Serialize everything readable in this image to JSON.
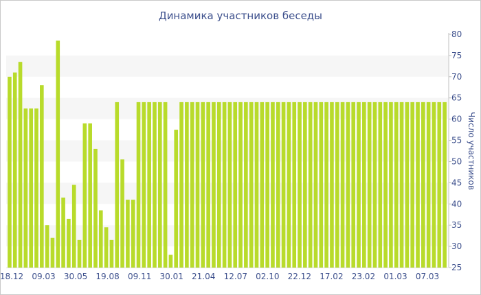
{
  "chart_data": {
    "type": "bar",
    "title": "Динамика участников беседы",
    "xlabel": "",
    "ylabel": "Число участников",
    "y_axis_side": "right",
    "ylim": [
      25,
      80
    ],
    "yticks": [
      25,
      30,
      35,
      40,
      45,
      50,
      55,
      60,
      65,
      70,
      75,
      80
    ],
    "grid": "horizontal bands",
    "legend": "none",
    "bar_color": "#b8db2b",
    "band_color": "#f6f6f6",
    "text_color": "#3c4f8c",
    "x_tick_labels": [
      "18.12",
      "09.03",
      "30.05",
      "19.08",
      "09.11",
      "30.01",
      "21.04",
      "12.07",
      "02.10",
      "22.12",
      "17.02",
      "23.02",
      "01.03",
      "07.03"
    ],
    "values": [
      70,
      71,
      73.5,
      62.5,
      62.5,
      62.5,
      68,
      35,
      32,
      78.5,
      41.5,
      36.5,
      44.5,
      31.5,
      59,
      59,
      53,
      38.5,
      34.5,
      31.5,
      64,
      50.5,
      41,
      41,
      64,
      64,
      64,
      64,
      64,
      64,
      28,
      57.5,
      64,
      64,
      64,
      64,
      64,
      64,
      64,
      64,
      64,
      64,
      64,
      64,
      64,
      64,
      64,
      64,
      64,
      64,
      64,
      64,
      64,
      64,
      64,
      64,
      64,
      64,
      64,
      64,
      64,
      64,
      64,
      64,
      64,
      64,
      64,
      64,
      64,
      64,
      64,
      64,
      64,
      64,
      64,
      64,
      64,
      64,
      64,
      64,
      64,
      64
    ]
  }
}
